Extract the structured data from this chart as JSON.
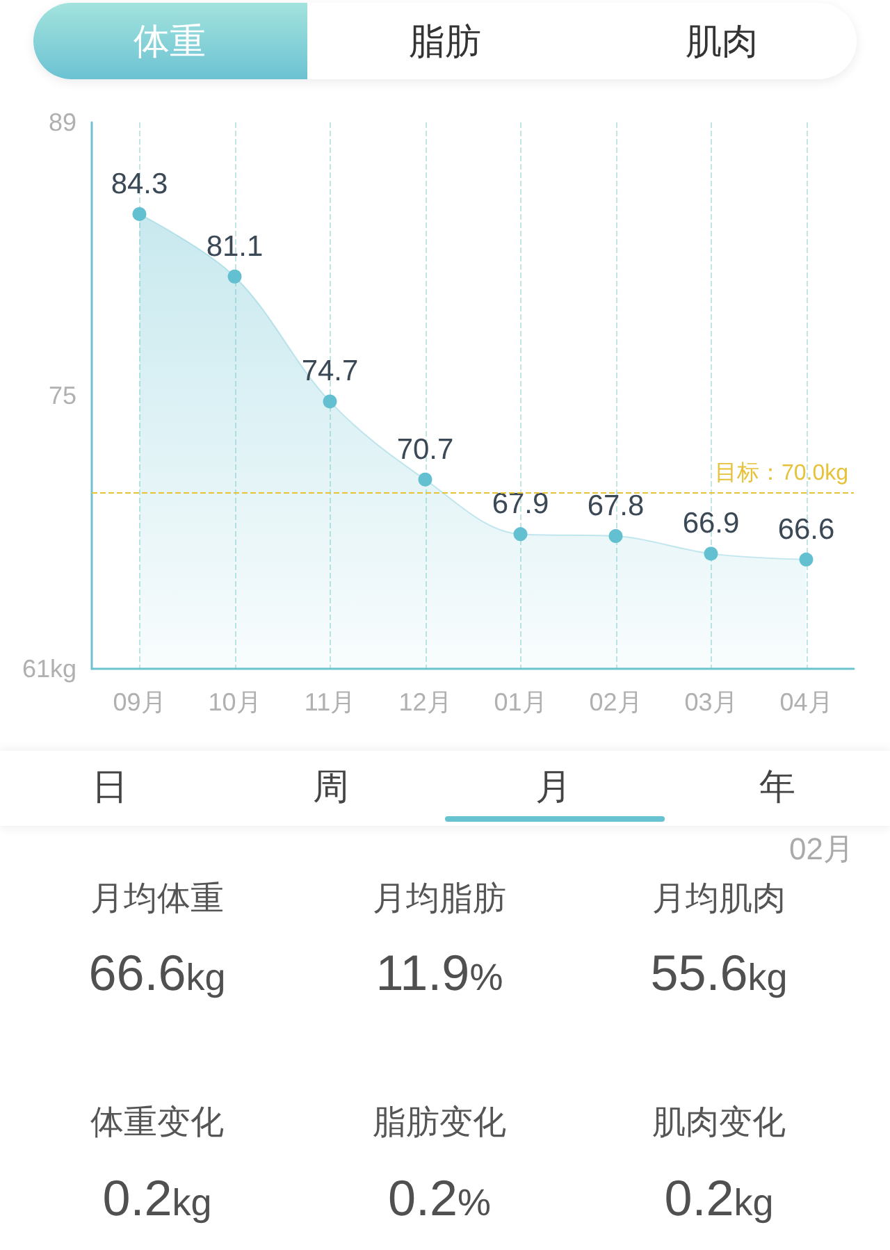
{
  "chart_data": {
    "type": "area",
    "categories": [
      "09月",
      "10月",
      "11月",
      "12月",
      "01月",
      "02月",
      "03月",
      "04月"
    ],
    "values": [
      84.3,
      81.1,
      74.7,
      70.7,
      67.9,
      67.8,
      66.9,
      66.6
    ],
    "color": "#62c0d0",
    "ylim": [
      61,
      89
    ],
    "yticks": [
      {
        "value": 61,
        "label": "61kg"
      },
      75,
      89
    ],
    "grid": "x",
    "marker": "circle",
    "data_labels": true,
    "ref_lines": [
      {
        "axis": "y",
        "value": 70,
        "label": "目标：70.0kg",
        "color": "#e6c23a",
        "line_style": "dashed"
      }
    ],
    "annotations": [
      "体重",
      "脂肪",
      "肌肉",
      "日",
      "周",
      "月",
      "年",
      "02月",
      "月均体重",
      "66.6kg",
      "月均脂肪",
      "11.9%",
      "月均肌肉",
      "55.6kg",
      "体重变化",
      "0.2kg",
      "脂肪变化",
      "0.2%",
      "肌肉变化",
      "0.2kg"
    ]
  }
}
